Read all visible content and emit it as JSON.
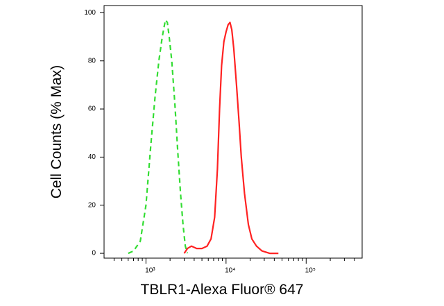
{
  "chart_data": {
    "type": "line",
    "x_label": "TBLR1-Alexa Fluor® 647",
    "y_label": "Cell Counts (% Max)",
    "x_log": true,
    "xlim": [
      300,
      500000
    ],
    "ylim": [
      -2,
      103
    ],
    "xticks": [
      {
        "value": 1000,
        "label": "10³"
      },
      {
        "value": 10000,
        "label": "10⁴"
      },
      {
        "value": 100000,
        "label": "10⁵"
      }
    ],
    "xminorticks": [
      400,
      500,
      600,
      700,
      800,
      900,
      2000,
      3000,
      4000,
      5000,
      6000,
      7000,
      8000,
      9000,
      20000,
      30000,
      40000,
      50000,
      60000,
      70000,
      80000,
      90000,
      200000,
      300000,
      400000
    ],
    "yticks": [
      0,
      20,
      40,
      60,
      80,
      100
    ],
    "series": [
      {
        "color": "#33dd33",
        "dash": true,
        "x": [
          600,
          700,
          850,
          1000,
          1150,
          1300,
          1450,
          1600,
          1750,
          1850,
          1950,
          2100,
          2300,
          2500,
          2700,
          2900,
          3100,
          3300
        ],
        "values": [
          0,
          1,
          5,
          20,
          45,
          65,
          80,
          90,
          97,
          96,
          90,
          80,
          62,
          42,
          25,
          12,
          3,
          0
        ]
      },
      {
        "color": "#ff2222",
        "dash": false,
        "x": [
          3000,
          3300,
          3700,
          4300,
          5000,
          5800,
          6500,
          7200,
          7800,
          8300,
          8800,
          9400,
          10000,
          10600,
          11200,
          11800,
          12500,
          13500,
          14500,
          15500,
          17000,
          19000,
          21000,
          24000,
          28000,
          35000,
          45000
        ],
        "values": [
          0,
          2,
          3,
          2,
          2,
          3,
          6,
          15,
          35,
          60,
          78,
          88,
          92,
          95,
          96,
          93,
          85,
          70,
          55,
          40,
          25,
          12,
          6,
          3,
          1,
          0,
          0
        ]
      }
    ]
  }
}
